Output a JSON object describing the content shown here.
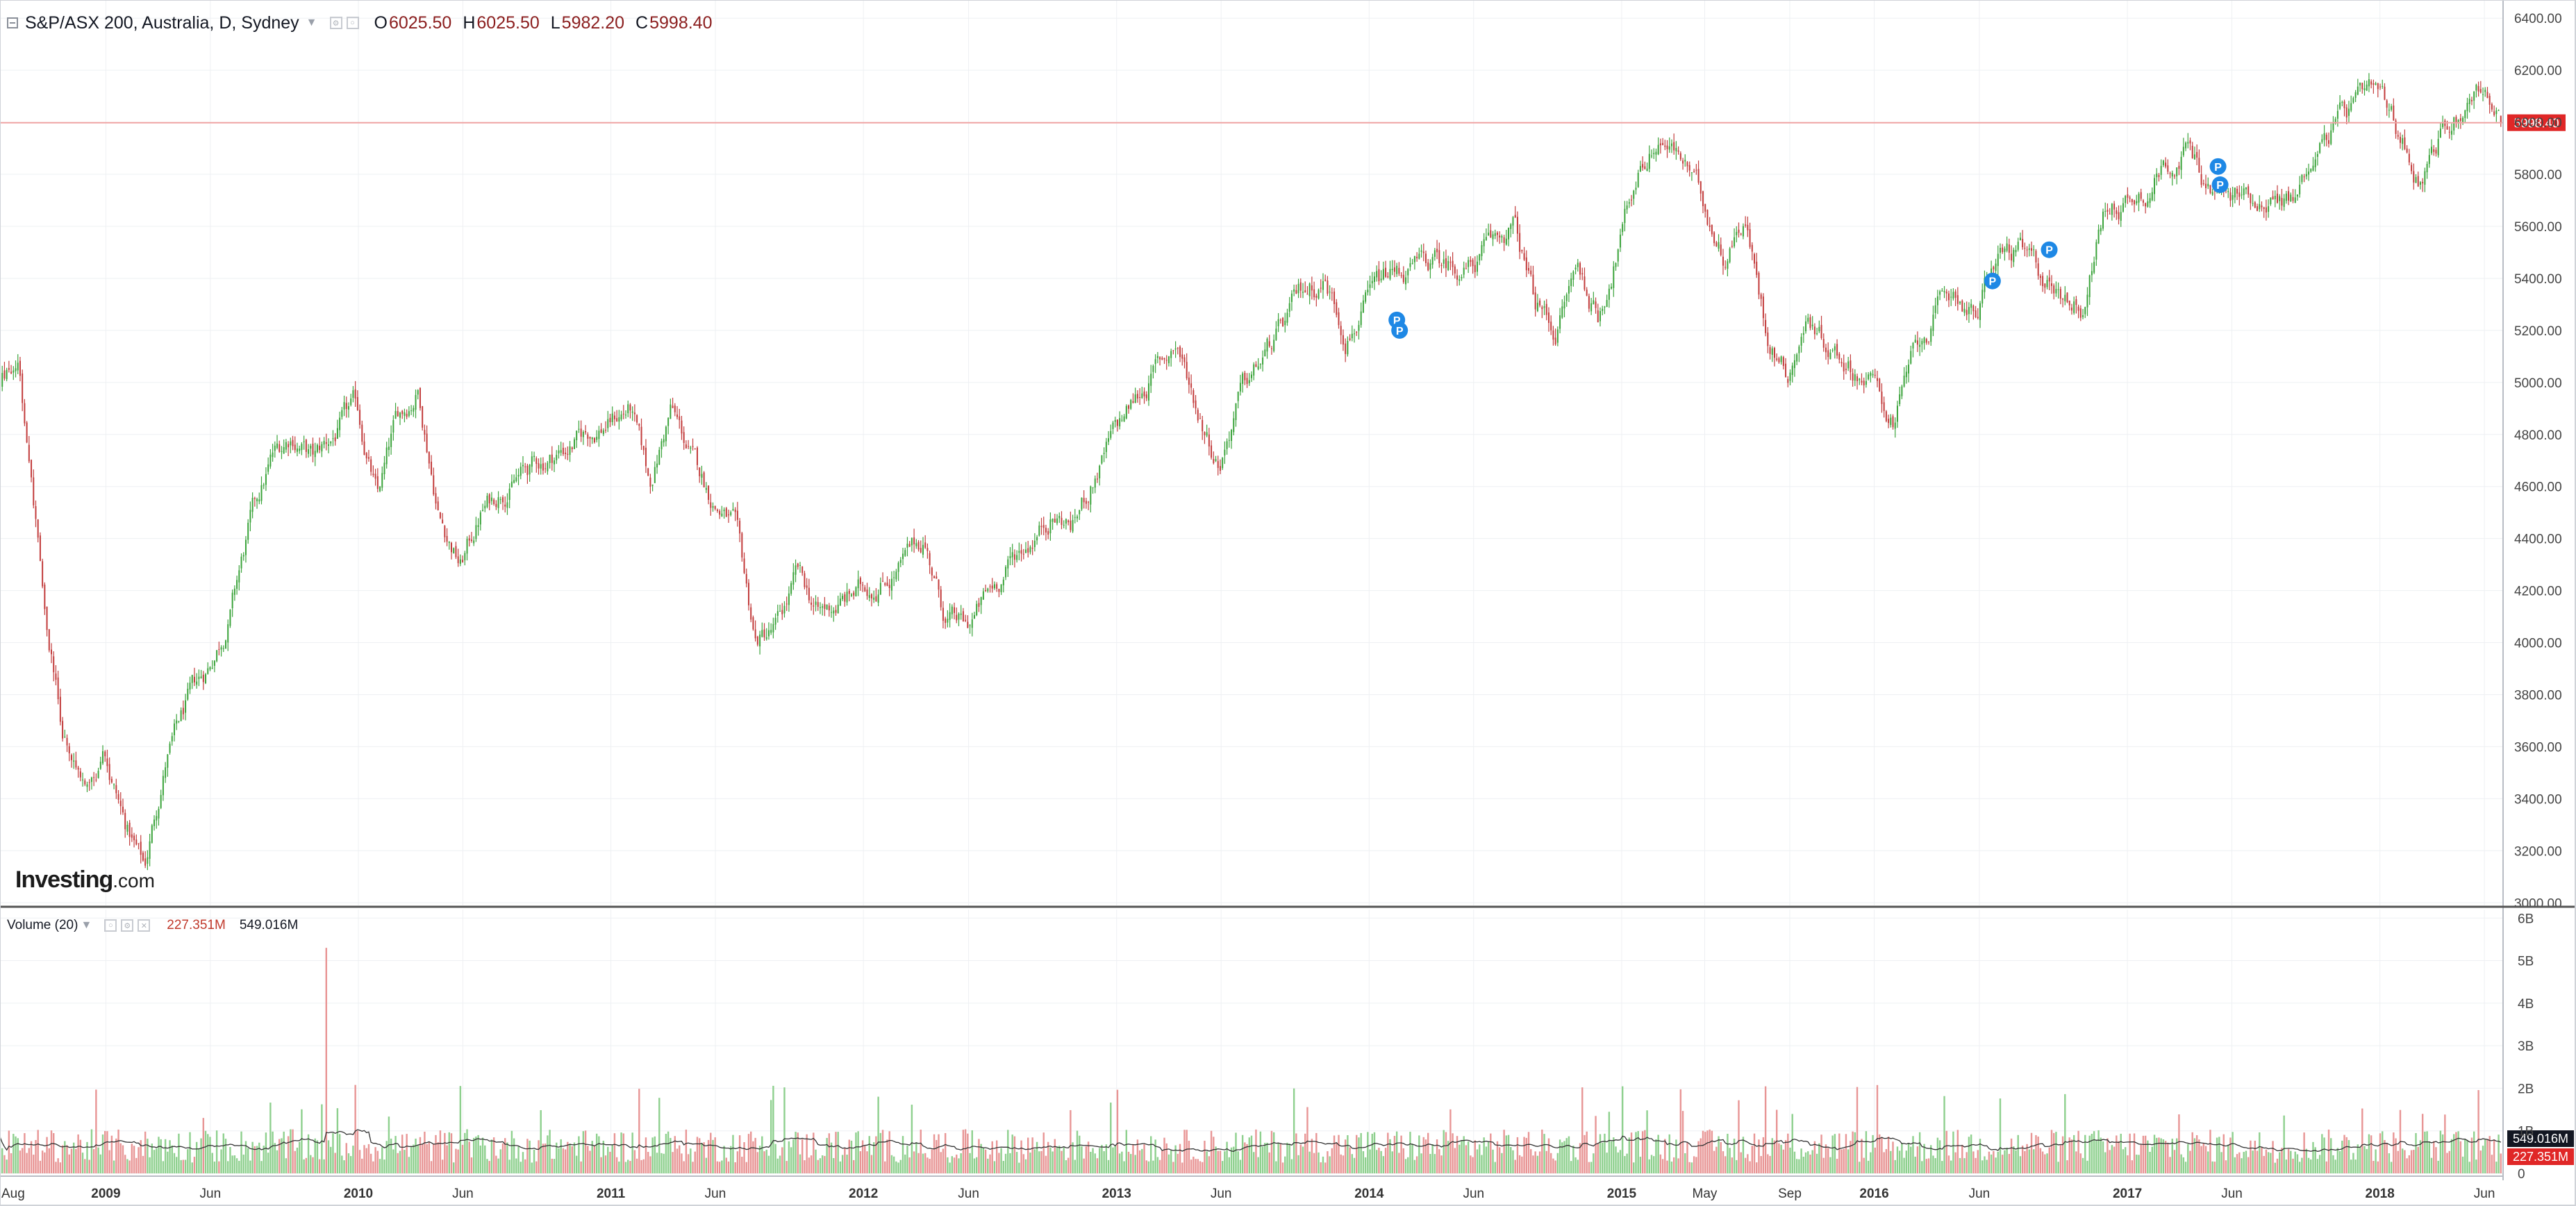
{
  "legend": {
    "symbol": "S&P/ASX 200, Australia, D, Sydney",
    "open_label": "O",
    "open_value": "6025.50",
    "high_label": "H",
    "high_value": "6025.50",
    "low_label": "L",
    "low_value": "5982.20",
    "close_label": "C",
    "close_value": "5998.40"
  },
  "volume_legend": {
    "label": "Volume (20)",
    "value_current": "227.351M",
    "value_ma": "549.016M"
  },
  "watermark": {
    "brand": "Investing",
    "suffix": ".com"
  },
  "price_marker": "5998.40",
  "volume_markers": {
    "ma": "549.016M",
    "current": "227.351M"
  },
  "colors": {
    "up": "#3aa33a",
    "down": "#c23b3b",
    "up_volume": "#8ed08e",
    "down_volume": "#e89595",
    "price_line": "#f0a3a3",
    "price_badge": "#e02727",
    "event_marker": "#1e88e5",
    "grid": "#eef0f3",
    "divider": "#555555"
  },
  "chart_data": {
    "type": "candlestick",
    "title": "S&P/ASX 200, Australia, D, Sydney",
    "price_axis": {
      "ticks": [
        3000,
        3200,
        3400,
        3600,
        3800,
        4000,
        4200,
        4400,
        4600,
        4800,
        5000,
        5200,
        5400,
        5600,
        5800,
        6000,
        6200,
        6400
      ],
      "tick_labels": [
        "3000.00",
        "3200.00",
        "3400.00",
        "3600.00",
        "3800.00",
        "4000.00",
        "4200.00",
        "4400.00",
        "4600.00",
        "4800.00",
        "5000.00",
        "5200.00",
        "5400.00",
        "5600.00",
        "5800.00",
        "6000.00",
        "6200.00",
        "6400.00"
      ],
      "range": [
        2990,
        6470
      ]
    },
    "time_axis": {
      "range": [
        "2008-08-01",
        "2018-06-28"
      ],
      "ticks": [
        {
          "label": "Aug",
          "date": "2008-08-01"
        },
        {
          "label": "2009",
          "date": "2009-01-01"
        },
        {
          "label": "Jun",
          "date": "2009-06-01"
        },
        {
          "label": "2010",
          "date": "2010-01-01"
        },
        {
          "label": "Jun",
          "date": "2010-06-01"
        },
        {
          "label": "2011",
          "date": "2011-01-01"
        },
        {
          "label": "Jun",
          "date": "2011-06-01"
        },
        {
          "label": "2012",
          "date": "2012-01-01"
        },
        {
          "label": "Jun",
          "date": "2012-06-01"
        },
        {
          "label": "2013",
          "date": "2013-01-01"
        },
        {
          "label": "Jun",
          "date": "2013-06-01"
        },
        {
          "label": "2014",
          "date": "2014-01-01"
        },
        {
          "label": "Jun",
          "date": "2014-06-01"
        },
        {
          "label": "2015",
          "date": "2015-01-01"
        },
        {
          "label": "May",
          "date": "2015-05-01"
        },
        {
          "label": "Sep",
          "date": "2015-09-01"
        },
        {
          "label": "2016",
          "date": "2016-01-01"
        },
        {
          "label": "Jun",
          "date": "2016-06-01"
        },
        {
          "label": "2017",
          "date": "2017-01-01"
        },
        {
          "label": "Jun",
          "date": "2017-06-01"
        },
        {
          "label": "2018",
          "date": "2018-01-01"
        },
        {
          "label": "Jun",
          "date": "2018-06-01"
        }
      ]
    },
    "price_path": [
      [
        "2008-08-01",
        4950
      ],
      [
        "2008-09-01",
        5100
      ],
      [
        "2008-10-01",
        4300
      ],
      [
        "2008-11-01",
        3700
      ],
      [
        "2008-12-01",
        3500
      ],
      [
        "2009-01-01",
        3580
      ],
      [
        "2009-02-01",
        3300
      ],
      [
        "2009-03-01",
        3130
      ],
      [
        "2009-04-01",
        3550
      ],
      [
        "2009-05-01",
        3750
      ],
      [
        "2009-06-01",
        3900
      ],
      [
        "2009-07-01",
        4100
      ],
      [
        "2009-08-01",
        4450
      ],
      [
        "2009-09-01",
        4700
      ],
      [
        "2009-10-01",
        4800
      ],
      [
        "2009-11-01",
        4700
      ],
      [
        "2010-01-01",
        4900
      ],
      [
        "2010-02-01",
        4550
      ],
      [
        "2010-03-01",
        4850
      ],
      [
        "2010-04-01",
        4980
      ],
      [
        "2010-05-01",
        4500
      ],
      [
        "2010-06-01",
        4300
      ],
      [
        "2010-07-01",
        4500
      ],
      [
        "2010-08-01",
        4600
      ],
      [
        "2010-10-01",
        4700
      ],
      [
        "2010-12-01",
        4800
      ],
      [
        "2011-02-01",
        4900
      ],
      [
        "2011-03-01",
        4600
      ],
      [
        "2011-04-01",
        4900
      ],
      [
        "2011-05-01",
        4700
      ],
      [
        "2011-06-01",
        4550
      ],
      [
        "2011-07-01",
        4450
      ],
      [
        "2011-08-01",
        4000
      ],
      [
        "2011-09-01",
        4050
      ],
      [
        "2011-10-01",
        4250
      ],
      [
        "2011-11-01",
        4100
      ],
      [
        "2012-01-01",
        4200
      ],
      [
        "2012-03-01",
        4300
      ],
      [
        "2012-04-01",
        4400
      ],
      [
        "2012-05-01",
        4100
      ],
      [
        "2012-06-01",
        4050
      ],
      [
        "2012-08-01",
        4300
      ],
      [
        "2012-10-01",
        4500
      ],
      [
        "2012-11-01",
        4450
      ],
      [
        "2013-01-01",
        4800
      ],
      [
        "2013-03-01",
        5050
      ],
      [
        "2013-04-01",
        5150
      ],
      [
        "2013-05-01",
        4900
      ],
      [
        "2013-06-01",
        4700
      ],
      [
        "2013-07-01",
        4950
      ],
      [
        "2013-09-01",
        5200
      ],
      [
        "2013-10-01",
        5350
      ],
      [
        "2013-11-01",
        5400
      ],
      [
        "2013-12-01",
        5200
      ],
      [
        "2014-01-01",
        5300
      ],
      [
        "2014-02-01",
        5400
      ],
      [
        "2014-04-01",
        5450
      ],
      [
        "2014-06-01",
        5450
      ],
      [
        "2014-08-01",
        5600
      ],
      [
        "2014-09-01",
        5300
      ],
      [
        "2014-10-01",
        5200
      ],
      [
        "2014-11-01",
        5450
      ],
      [
        "2014-12-01",
        5250
      ],
      [
        "2015-01-01",
        5550
      ],
      [
        "2015-02-01",
        5850
      ],
      [
        "2015-03-01",
        5950
      ],
      [
        "2015-04-01",
        5850
      ],
      [
        "2015-05-01",
        5700
      ],
      [
        "2015-06-01",
        5500
      ],
      [
        "2015-07-01",
        5650
      ],
      [
        "2015-08-01",
        5200
      ],
      [
        "2015-09-01",
        5050
      ],
      [
        "2015-10-01",
        5250
      ],
      [
        "2015-11-01",
        5150
      ],
      [
        "2016-01-01",
        5000
      ],
      [
        "2016-02-01",
        4850
      ],
      [
        "2016-03-01",
        5100
      ],
      [
        "2016-04-01",
        5250
      ],
      [
        "2016-05-01",
        5350
      ],
      [
        "2016-06-01",
        5250
      ],
      [
        "2016-07-01",
        5500
      ],
      [
        "2016-08-01",
        5500
      ],
      [
        "2016-09-01",
        5400
      ],
      [
        "2016-10-01",
        5350
      ],
      [
        "2016-11-01",
        5300
      ],
      [
        "2016-12-01",
        5650
      ],
      [
        "2017-01-01",
        5700
      ],
      [
        "2017-02-01",
        5750
      ],
      [
        "2017-03-01",
        5850
      ],
      [
        "2017-04-01",
        5900
      ],
      [
        "2017-05-01",
        5750
      ],
      [
        "2017-06-01",
        5700
      ],
      [
        "2017-07-01",
        5720
      ],
      [
        "2017-08-01",
        5720
      ],
      [
        "2017-09-01",
        5700
      ],
      [
        "2017-10-01",
        5900
      ],
      [
        "2017-11-01",
        6000
      ],
      [
        "2017-12-01",
        6050
      ],
      [
        "2018-01-01",
        6080
      ],
      [
        "2018-02-01",
        5950
      ],
      [
        "2018-03-01",
        5800
      ],
      [
        "2018-04-01",
        5950
      ],
      [
        "2018-05-01",
        6050
      ],
      [
        "2018-06-01",
        6150
      ],
      [
        "2018-06-28",
        5998
      ]
    ],
    "last": {
      "open": 6025.5,
      "high": 6025.5,
      "low": 5982.2,
      "close": 5998.4
    },
    "event_markers": [
      {
        "label": "P",
        "date": "2014-02-10",
        "price": 5240
      },
      {
        "label": "P",
        "date": "2014-02-14",
        "price": 5200
      },
      {
        "label": "P",
        "date": "2016-06-20",
        "price": 5390
      },
      {
        "label": "P",
        "date": "2016-09-10",
        "price": 5510
      },
      {
        "label": "P",
        "date": "2017-05-12",
        "price": 5830
      },
      {
        "label": "P",
        "date": "2017-05-15",
        "price": 5760
      }
    ],
    "volume": {
      "axis_ticks": [
        0,
        1,
        2,
        3,
        4,
        5,
        6
      ],
      "axis_labels": [
        "0",
        "1B",
        "2B",
        "3B",
        "4B",
        "5B",
        "6B"
      ],
      "unit": "B",
      "typical_range": [
        0.25,
        1.3
      ],
      "spike": {
        "date": "2009-11-15",
        "value": 5.3
      },
      "ma_period": 20
    }
  }
}
